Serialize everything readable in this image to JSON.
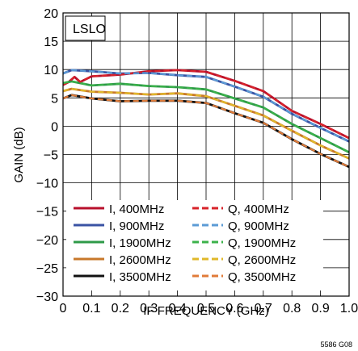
{
  "chart_data": {
    "type": "line",
    "title": "",
    "annotation": "LSLO",
    "figure_code": "5586 G08",
    "xlabel": "IF FREQUENCY (GHz)",
    "ylabel": "GAIN (dB)",
    "xlim": [
      0,
      1.0
    ],
    "ylim": [
      -30,
      20
    ],
    "x_ticks": [
      "0",
      "0.1",
      "0.2",
      "0.3",
      "0.4",
      "0.5",
      "0.6",
      "0.7",
      "0.8",
      "0.9",
      "1.0"
    ],
    "y_ticks": [
      "−30",
      "−25",
      "−20",
      "−15",
      "−10",
      "−5",
      "0",
      "5",
      "10",
      "15",
      "20"
    ],
    "grid": true,
    "legend_position": "bottom",
    "series": [
      {
        "name": "I, 400MHz",
        "color": "#b8102c",
        "dash": "solid",
        "points": [
          [
            0.0,
            7.3
          ],
          [
            0.02,
            7.8
          ],
          [
            0.04,
            8.7
          ],
          [
            0.06,
            7.8
          ],
          [
            0.1,
            8.8
          ],
          [
            0.2,
            9.1
          ],
          [
            0.3,
            9.7
          ],
          [
            0.4,
            9.9
          ],
          [
            0.5,
            9.6
          ],
          [
            0.6,
            8.0
          ],
          [
            0.7,
            6.2
          ],
          [
            0.8,
            2.7
          ],
          [
            0.9,
            0.4
          ],
          [
            1.0,
            -2.1
          ]
        ]
      },
      {
        "name": "Q, 400MHz",
        "color": "#d8232a",
        "dash": "dashed",
        "points": [
          [
            0.0,
            7.3
          ],
          [
            0.02,
            7.8
          ],
          [
            0.04,
            8.7
          ],
          [
            0.06,
            7.8
          ],
          [
            0.1,
            8.8
          ],
          [
            0.2,
            9.1
          ],
          [
            0.3,
            9.7
          ],
          [
            0.4,
            9.9
          ],
          [
            0.5,
            9.6
          ],
          [
            0.6,
            8.0
          ],
          [
            0.7,
            6.2
          ],
          [
            0.8,
            2.7
          ],
          [
            0.9,
            0.4
          ],
          [
            1.0,
            -2.1
          ]
        ]
      },
      {
        "name": "I, 900MHz",
        "color": "#3a53a4",
        "dash": "solid",
        "points": [
          [
            0.0,
            9.3
          ],
          [
            0.03,
            9.9
          ],
          [
            0.1,
            9.7
          ],
          [
            0.2,
            9.3
          ],
          [
            0.3,
            9.4
          ],
          [
            0.4,
            9.0
          ],
          [
            0.5,
            8.7
          ],
          [
            0.6,
            7.0
          ],
          [
            0.7,
            5.2
          ],
          [
            0.8,
            2.2
          ],
          [
            0.9,
            -0.3
          ],
          [
            1.0,
            -2.7
          ]
        ]
      },
      {
        "name": "Q, 900MHz",
        "color": "#5b9bd5",
        "dash": "dashed",
        "points": [
          [
            0.0,
            9.3
          ],
          [
            0.03,
            9.9
          ],
          [
            0.1,
            9.7
          ],
          [
            0.2,
            9.3
          ],
          [
            0.3,
            9.4
          ],
          [
            0.4,
            9.0
          ],
          [
            0.5,
            8.7
          ],
          [
            0.6,
            7.0
          ],
          [
            0.7,
            5.2
          ],
          [
            0.8,
            2.2
          ],
          [
            0.9,
            -0.3
          ],
          [
            1.0,
            -2.7
          ]
        ]
      },
      {
        "name": "I, 1900MHz",
        "color": "#2e9a48",
        "dash": "solid",
        "points": [
          [
            0.0,
            7.6
          ],
          [
            0.03,
            7.9
          ],
          [
            0.1,
            7.2
          ],
          [
            0.2,
            7.5
          ],
          [
            0.3,
            7.1
          ],
          [
            0.4,
            6.9
          ],
          [
            0.5,
            6.5
          ],
          [
            0.6,
            4.9
          ],
          [
            0.7,
            3.3
          ],
          [
            0.8,
            0.4
          ],
          [
            0.9,
            -2.1
          ],
          [
            1.0,
            -4.6
          ]
        ]
      },
      {
        "name": "Q, 1900MHz",
        "color": "#3bb24a",
        "dash": "dashed",
        "points": [
          [
            0.0,
            7.6
          ],
          [
            0.03,
            7.9
          ],
          [
            0.1,
            7.2
          ],
          [
            0.2,
            7.5
          ],
          [
            0.3,
            7.1
          ],
          [
            0.4,
            6.9
          ],
          [
            0.5,
            6.5
          ],
          [
            0.6,
            4.9
          ],
          [
            0.7,
            3.3
          ],
          [
            0.8,
            0.4
          ],
          [
            0.9,
            -2.1
          ],
          [
            1.0,
            -4.6
          ]
        ]
      },
      {
        "name": "I, 2600MHz",
        "color": "#c8782b",
        "dash": "solid",
        "points": [
          [
            0.0,
            6.2
          ],
          [
            0.03,
            6.6
          ],
          [
            0.1,
            6.1
          ],
          [
            0.2,
            5.9
          ],
          [
            0.3,
            5.6
          ],
          [
            0.4,
            5.8
          ],
          [
            0.5,
            5.3
          ],
          [
            0.6,
            3.6
          ],
          [
            0.7,
            1.9
          ],
          [
            0.8,
            -0.8
          ],
          [
            0.9,
            -3.4
          ],
          [
            1.0,
            -5.7
          ]
        ]
      },
      {
        "name": "Q, 2600MHz",
        "color": "#e0b82a",
        "dash": "dashed",
        "points": [
          [
            0.0,
            6.2
          ],
          [
            0.03,
            6.6
          ],
          [
            0.1,
            6.1
          ],
          [
            0.2,
            5.9
          ],
          [
            0.3,
            5.6
          ],
          [
            0.4,
            5.8
          ],
          [
            0.5,
            5.3
          ],
          [
            0.6,
            3.6
          ],
          [
            0.7,
            1.9
          ],
          [
            0.8,
            -0.8
          ],
          [
            0.9,
            -3.4
          ],
          [
            1.0,
            -5.7
          ]
        ]
      },
      {
        "name": "I, 3500MHz",
        "color": "#111111",
        "dash": "solid",
        "points": [
          [
            0.0,
            4.9
          ],
          [
            0.03,
            5.5
          ],
          [
            0.1,
            4.9
          ],
          [
            0.2,
            4.4
          ],
          [
            0.3,
            4.5
          ],
          [
            0.4,
            4.5
          ],
          [
            0.5,
            4.1
          ],
          [
            0.6,
            2.3
          ],
          [
            0.7,
            0.6
          ],
          [
            0.8,
            -2.3
          ],
          [
            0.9,
            -4.9
          ],
          [
            1.0,
            -7.2
          ]
        ]
      },
      {
        "name": "Q, 3500MHz",
        "color": "#e07b39",
        "dash": "dashed",
        "points": [
          [
            0.0,
            4.9
          ],
          [
            0.03,
            5.5
          ],
          [
            0.1,
            4.9
          ],
          [
            0.2,
            4.4
          ],
          [
            0.3,
            4.5
          ],
          [
            0.4,
            4.5
          ],
          [
            0.5,
            4.1
          ],
          [
            0.6,
            2.3
          ],
          [
            0.7,
            0.6
          ],
          [
            0.8,
            -2.3
          ],
          [
            0.9,
            -4.9
          ],
          [
            1.0,
            -7.2
          ]
        ]
      }
    ]
  }
}
